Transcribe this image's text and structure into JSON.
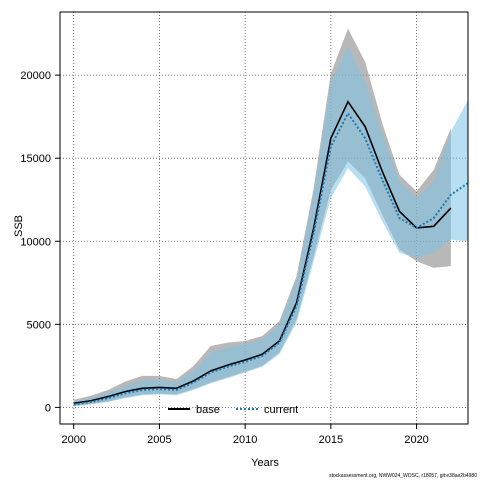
{
  "chart_data": {
    "type": "line",
    "xlabel": "Years",
    "ylabel": "SSB",
    "xlim": [
      1999.2,
      2023
    ],
    "ylim": [
      -1000,
      23800
    ],
    "x_ticks": [
      2000,
      2005,
      2010,
      2015,
      2020
    ],
    "y_ticks": [
      0,
      5000,
      10000,
      15000,
      20000
    ],
    "grid": true,
    "legend_position": "bottom-center",
    "footnote": "stockassessment.org, NWW024_WOSC, r18057, git:e38ae2b4980",
    "colors": {
      "base_band": "#8c8c8c",
      "base_line": "#000000",
      "current_band": "#7ec2e6",
      "current_line": "#1f78b4"
    },
    "series": [
      {
        "name": "base",
        "style": "solid",
        "x": [
          2000,
          2001,
          2002,
          2003,
          2004,
          2005,
          2006,
          2007,
          2008,
          2009,
          2010,
          2011,
          2012,
          2013,
          2014,
          2015,
          2016,
          2017,
          2018,
          2019,
          2020,
          2021,
          2022
        ],
        "values": [
          250,
          400,
          650,
          950,
          1150,
          1200,
          1150,
          1600,
          2200,
          2550,
          2850,
          3200,
          4000,
          6300,
          10800,
          16200,
          18400,
          16900,
          14200,
          11800,
          10800,
          10900,
          12000
        ],
        "lower": [
          80,
          200,
          350,
          600,
          780,
          830,
          780,
          1100,
          1500,
          1820,
          2150,
          2500,
          3300,
          5300,
          9100,
          13100,
          14800,
          13800,
          11600,
          9500,
          8800,
          8400,
          8500
        ],
        "upper": [
          450,
          700,
          1050,
          1550,
          1900,
          1900,
          1700,
          2500,
          3700,
          3900,
          4000,
          4300,
          5200,
          7900,
          13200,
          20100,
          22800,
          20800,
          17100,
          14000,
          13000,
          14300,
          16800
        ]
      },
      {
        "name": "current",
        "style": "dotted",
        "x": [
          2000,
          2001,
          2002,
          2003,
          2004,
          2005,
          2006,
          2007,
          2008,
          2009,
          2010,
          2011,
          2012,
          2013,
          2014,
          2015,
          2016,
          2017,
          2018,
          2019,
          2020,
          2021,
          2022,
          2023
        ],
        "values": [
          170,
          320,
          550,
          850,
          1050,
          1100,
          1050,
          1500,
          2100,
          2450,
          2750,
          3100,
          3900,
          6100,
          10500,
          15700,
          17700,
          16200,
          13700,
          11400,
          10800,
          11400,
          12800,
          13500
        ],
        "lower": [
          60,
          180,
          330,
          550,
          720,
          780,
          730,
          1050,
          1450,
          1750,
          2100,
          2450,
          3200,
          5100,
          8800,
          12600,
          14400,
          13300,
          11200,
          9300,
          9000,
          9300,
          10100,
          10000
        ],
        "upper": [
          330,
          560,
          880,
          1300,
          1600,
          1650,
          1500,
          2200,
          3300,
          3600,
          3800,
          4100,
          5000,
          7600,
          12800,
          19600,
          21700,
          19600,
          16400,
          13600,
          12600,
          13600,
          16600,
          18500
        ]
      }
    ]
  }
}
